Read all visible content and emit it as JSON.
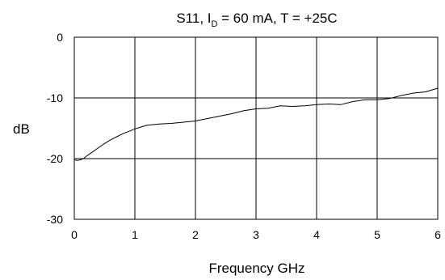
{
  "chart_data": {
    "type": "line",
    "title": {
      "main": "S11, I",
      "sub": "D",
      "rest": " = 60 mA, T = +25C"
    },
    "xlabel": "Frequency GHz",
    "ylabel": "dB",
    "xlim": [
      0,
      6
    ],
    "ylim": [
      -30,
      0
    ],
    "x_ticks": [
      0,
      1,
      2,
      3,
      4,
      5,
      6
    ],
    "y_ticks": [
      0,
      -10,
      -20,
      -30
    ],
    "grid": true,
    "series": [
      {
        "x": [
          0.0,
          0.05,
          0.1,
          0.15,
          0.2,
          0.3,
          0.4,
          0.5,
          0.6,
          0.7,
          0.8,
          0.9,
          1.0,
          1.1,
          1.2,
          1.4,
          1.6,
          1.8,
          2.0,
          2.2,
          2.4,
          2.6,
          2.8,
          3.0,
          3.2,
          3.4,
          3.6,
          3.8,
          4.0,
          4.2,
          4.4,
          4.6,
          4.8,
          5.0,
          5.2,
          5.4,
          5.6,
          5.8,
          6.0
        ],
        "y": [
          -20.2,
          -20.3,
          -20.2,
          -20.0,
          -19.6,
          -18.9,
          -18.2,
          -17.5,
          -16.9,
          -16.4,
          -15.9,
          -15.5,
          -15.1,
          -14.8,
          -14.5,
          -14.3,
          -14.2,
          -14.0,
          -13.8,
          -13.4,
          -13.0,
          -12.6,
          -12.1,
          -11.8,
          -11.7,
          -11.3,
          -11.4,
          -11.3,
          -11.1,
          -11.0,
          -11.1,
          -10.6,
          -10.3,
          -10.3,
          -10.1,
          -9.6,
          -9.2,
          -9.0,
          -8.4
        ]
      }
    ]
  }
}
